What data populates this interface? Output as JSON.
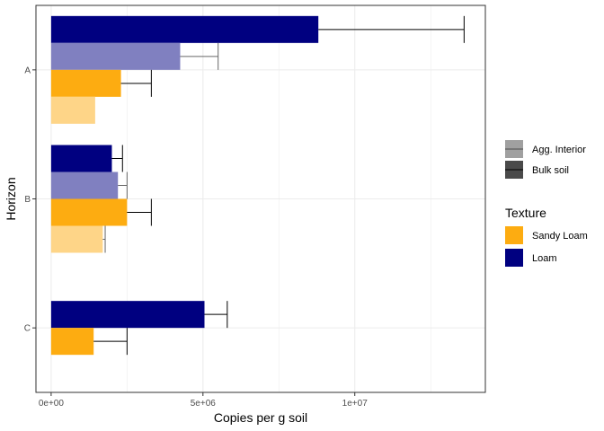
{
  "chart_data": {
    "type": "bar",
    "orientation": "horizontal",
    "xlabel": "Copies per g soil",
    "ylabel": "Horizon",
    "xlim": [
      -500000,
      14300000
    ],
    "x_ticks": [
      {
        "value": 0,
        "label": "0e+00"
      },
      {
        "value": 5000000,
        "label": "5e+06"
      },
      {
        "value": 10000000,
        "label": "1e+07"
      }
    ],
    "categories": [
      "A",
      "B",
      "C"
    ],
    "grid": true,
    "legend_position": "right",
    "legends": {
      "linetype": {
        "title": "",
        "entries": [
          {
            "label": "Agg. Interior",
            "color": "#a0a0a0",
            "outline": "#4d4d4d"
          },
          {
            "label": "Bulk soil",
            "color": "#4a4a4a",
            "outline": "#000000"
          }
        ]
      },
      "fill": {
        "title": "Texture",
        "entries": [
          {
            "label": "Sandy Loam",
            "color": "#FDAC11"
          },
          {
            "label": "Loam",
            "color": "#000080"
          }
        ]
      }
    },
    "bars": [
      {
        "category": "A",
        "texture": "Loam",
        "fraction": "Bulk soil",
        "value": 8800000,
        "error_low": 8800000,
        "error_high": 13600000,
        "color": "#000080",
        "error_color": "#000000"
      },
      {
        "category": "A",
        "texture": "Loam",
        "fraction": "Agg. Interior",
        "value": 4250000,
        "error_low": 4250000,
        "error_high": 5500000,
        "color": "#8080C0",
        "error_color": "#666666"
      },
      {
        "category": "A",
        "texture": "Sandy Loam",
        "fraction": "Bulk soil",
        "value": 2300000,
        "error_low": 2300000,
        "error_high": 3300000,
        "color": "#FDAC11",
        "error_color": "#000000"
      },
      {
        "category": "A",
        "texture": "Sandy Loam",
        "fraction": "Agg. Interior",
        "value": 1450000,
        "error_low": null,
        "error_high": null,
        "color": "#FED588",
        "error_color": "#666666"
      },
      {
        "category": "B",
        "texture": "Loam",
        "fraction": "Bulk soil",
        "value": 2000000,
        "error_low": 2000000,
        "error_high": 2350000,
        "color": "#000080",
        "error_color": "#000000"
      },
      {
        "category": "B",
        "texture": "Loam",
        "fraction": "Agg. Interior",
        "value": 2200000,
        "error_low": 2200000,
        "error_high": 2500000,
        "color": "#8080C0",
        "error_color": "#666666"
      },
      {
        "category": "B",
        "texture": "Sandy Loam",
        "fraction": "Bulk soil",
        "value": 2500000,
        "error_low": 2500000,
        "error_high": 3300000,
        "color": "#FDAC11",
        "error_color": "#000000"
      },
      {
        "category": "B",
        "texture": "Sandy Loam",
        "fraction": "Agg. Interior",
        "value": 1700000,
        "error_low": 1700000,
        "error_high": 1780000,
        "color": "#FED588",
        "error_color": "#666666"
      },
      {
        "category": "C",
        "texture": "Loam",
        "fraction": "Bulk soil",
        "value": 5050000,
        "error_low": 5050000,
        "error_high": 5800000,
        "color": "#000080",
        "error_color": "#000000"
      },
      {
        "category": "C",
        "texture": "Sandy Loam",
        "fraction": "Bulk soil",
        "value": 1400000,
        "error_low": 1400000,
        "error_high": 2500000,
        "color": "#FDAC11",
        "error_color": "#000000"
      }
    ]
  }
}
